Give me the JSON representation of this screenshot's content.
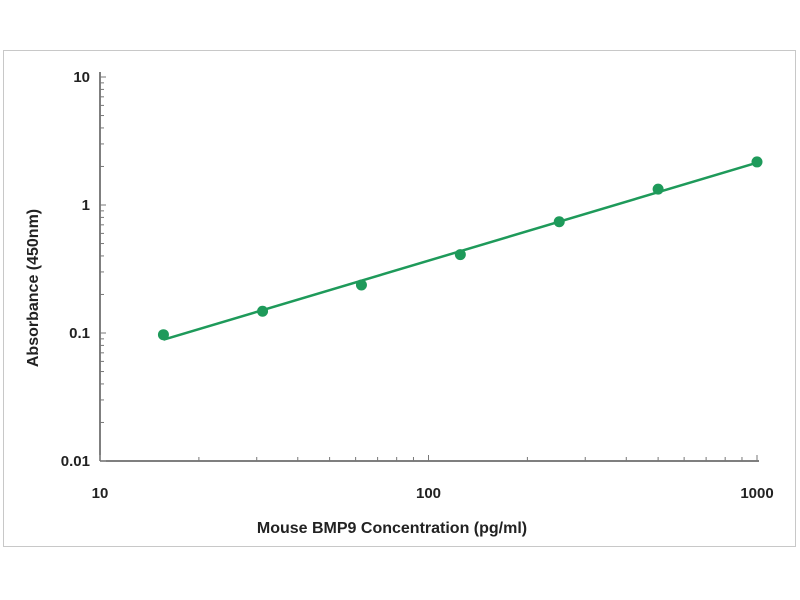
{
  "chart_data": {
    "type": "scatter",
    "title": "",
    "xlabel": "Mouse BMP9  Concentration (pg/ml)",
    "ylabel": "Absorbance (450nm)",
    "x_scale": "log",
    "y_scale": "log",
    "xlim": [
      10,
      1000
    ],
    "ylim": [
      0.01,
      10
    ],
    "x_ticks": [
      "10",
      "100",
      "1000"
    ],
    "y_ticks": [
      "0.01",
      "0.1",
      "1",
      "10"
    ],
    "grid": false,
    "legend": "none",
    "series": [
      {
        "x": [
          15.6,
          31.25,
          62.5,
          125,
          250,
          500,
          1000
        ],
        "y": [
          0.097,
          0.148,
          0.237,
          0.41,
          0.74,
          1.33,
          2.17
        ],
        "marker_color": "#1e9a5a",
        "fit_line": true,
        "line_color": "#1e9a5a"
      }
    ]
  }
}
